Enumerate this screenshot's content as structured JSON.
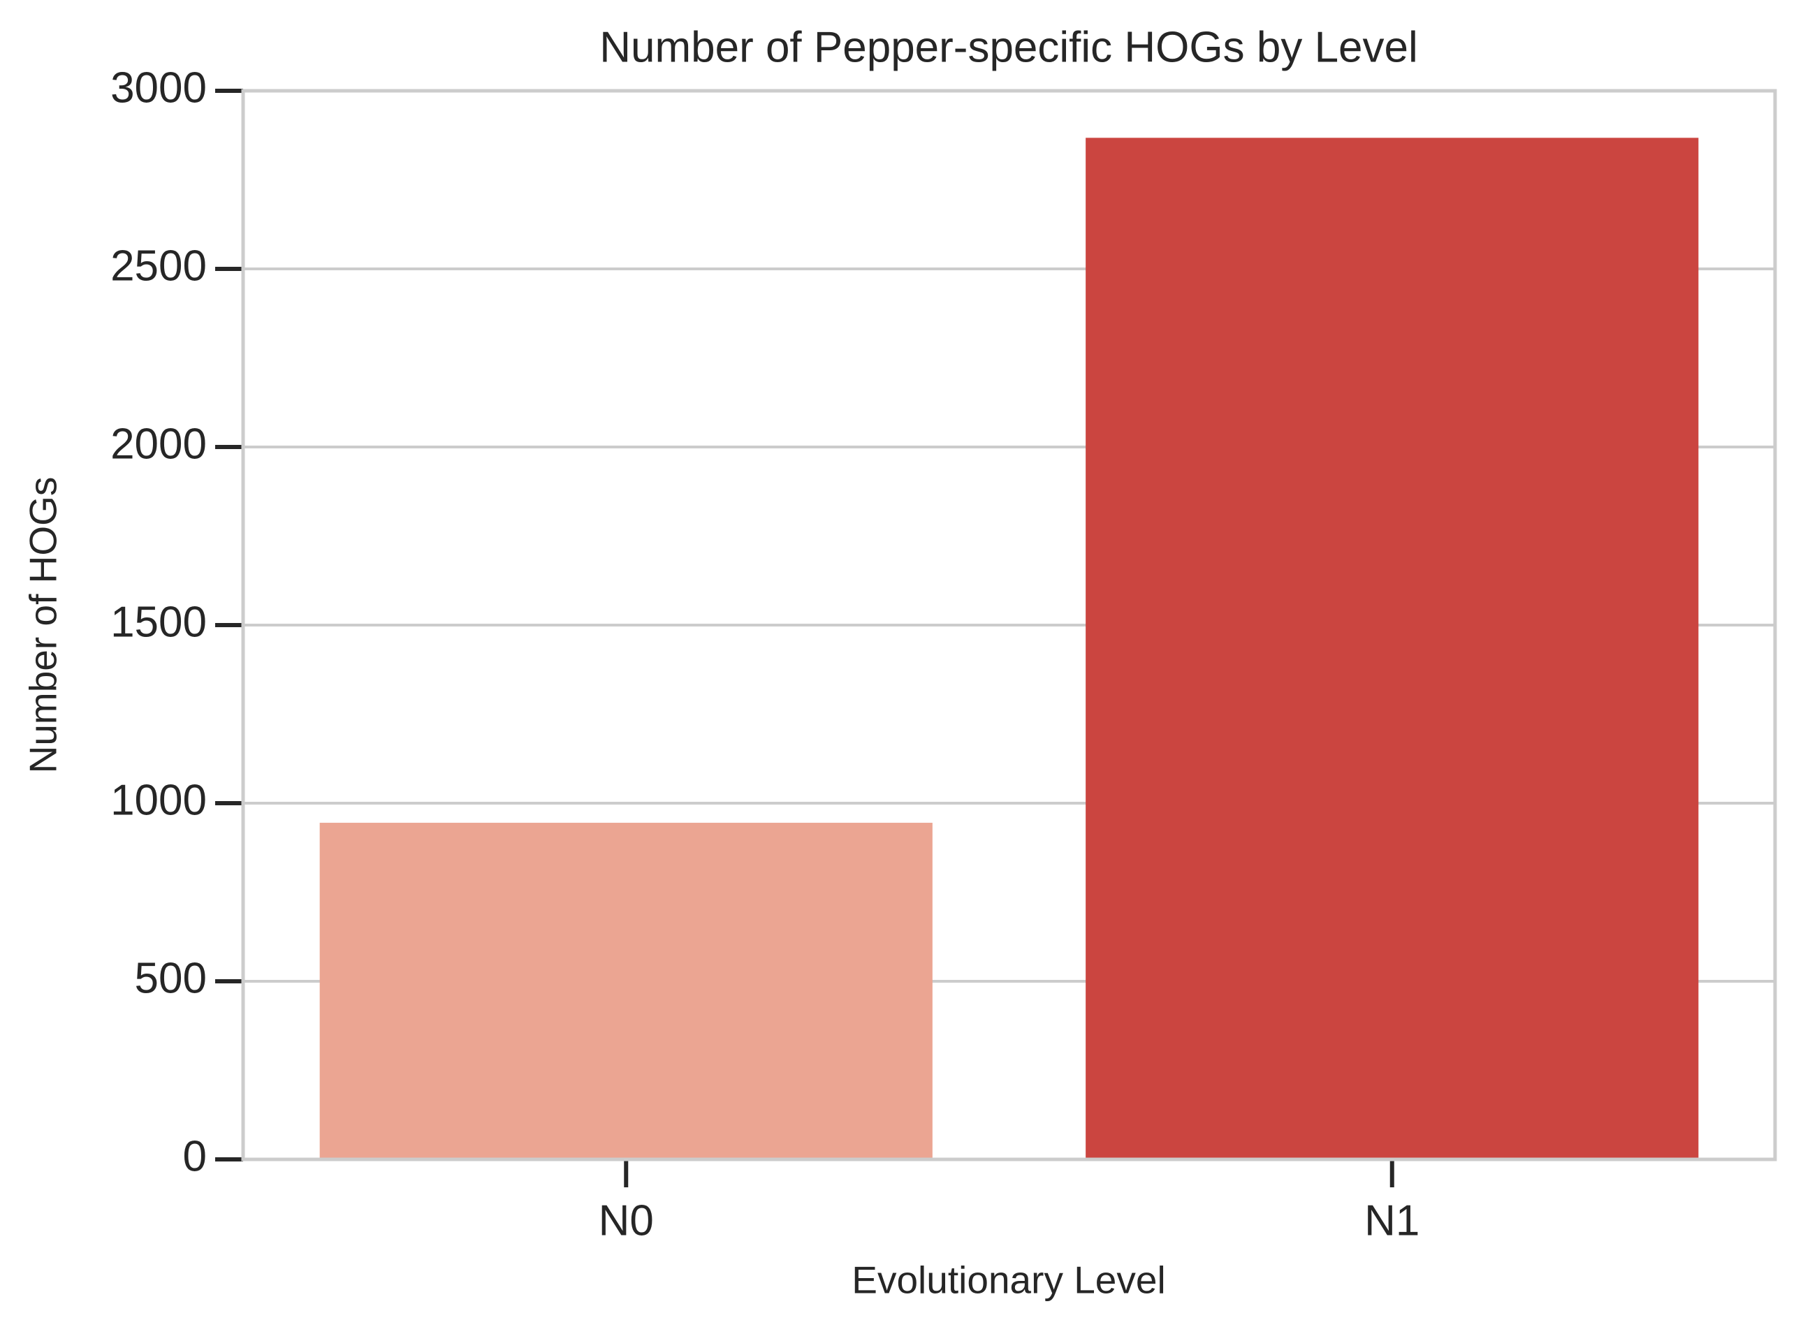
{
  "chart_data": {
    "type": "bar",
    "title": "Number of Pepper-specific HOGs by Level",
    "xlabel": "Evolutionary Level",
    "ylabel": "Number of HOGs",
    "categories": [
      "N0",
      "N1"
    ],
    "values": [
      945,
      2868
    ],
    "colors": [
      "#eba592",
      "#cb4540"
    ],
    "ylim": [
      0,
      3000
    ],
    "yticks": [
      0,
      500,
      1000,
      1500,
      2000,
      2500,
      3000
    ],
    "grid": true
  }
}
